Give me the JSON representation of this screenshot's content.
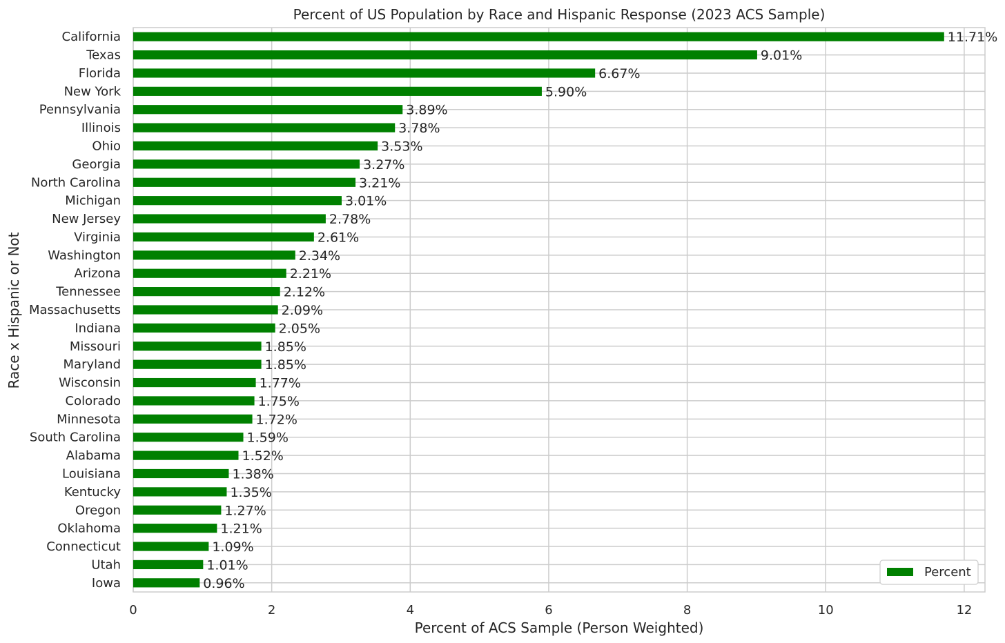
{
  "chart_data": {
    "type": "bar",
    "orientation": "horizontal",
    "title": "Percent of US Population by Race and Hispanic Response (2023 ACS Sample)",
    "xlabel": "Percent of ACS Sample (Person Weighted)",
    "ylabel": "Race x Hispanic or Not",
    "xlim": [
      0,
      12.3
    ],
    "xticks": [
      "0",
      "2",
      "4",
      "6",
      "8",
      "10",
      "12"
    ],
    "grid": true,
    "legend_position": "lower-right",
    "categories": [
      "California",
      "Texas",
      "Florida",
      "New York",
      "Pennsylvania",
      "Illinois",
      "Ohio",
      "Georgia",
      "North Carolina",
      "Michigan",
      "New Jersey",
      "Virginia",
      "Washington",
      "Arizona",
      "Tennessee",
      "Massachusetts",
      "Indiana",
      "Missouri",
      "Maryland",
      "Wisconsin",
      "Colorado",
      "Minnesota",
      "South Carolina",
      "Alabama",
      "Louisiana",
      "Kentucky",
      "Oregon",
      "Oklahoma",
      "Connecticut",
      "Utah",
      "Iowa"
    ],
    "series": [
      {
        "name": "Percent",
        "color": "#008000",
        "values": [
          11.71,
          9.01,
          6.67,
          5.9,
          3.89,
          3.78,
          3.53,
          3.27,
          3.21,
          3.01,
          2.78,
          2.61,
          2.34,
          2.21,
          2.12,
          2.09,
          2.05,
          1.85,
          1.85,
          1.77,
          1.75,
          1.72,
          1.59,
          1.52,
          1.38,
          1.35,
          1.27,
          1.21,
          1.09,
          1.01,
          0.96
        ],
        "labels": [
          "11.71%",
          "9.01%",
          "6.67%",
          "5.90%",
          "3.89%",
          "3.78%",
          "3.53%",
          "3.27%",
          "3.21%",
          "3.01%",
          "2.78%",
          "2.61%",
          "2.34%",
          "2.21%",
          "2.12%",
          "2.09%",
          "2.05%",
          "1.85%",
          "1.85%",
          "1.77%",
          "1.75%",
          "1.72%",
          "1.59%",
          "1.52%",
          "1.38%",
          "1.35%",
          "1.27%",
          "1.21%",
          "1.09%",
          "1.01%",
          "0.96%"
        ]
      }
    ]
  },
  "colors": {
    "bar": "#008000",
    "grid": "#cccccc",
    "frame": "#cccccc",
    "text": "#262626"
  }
}
